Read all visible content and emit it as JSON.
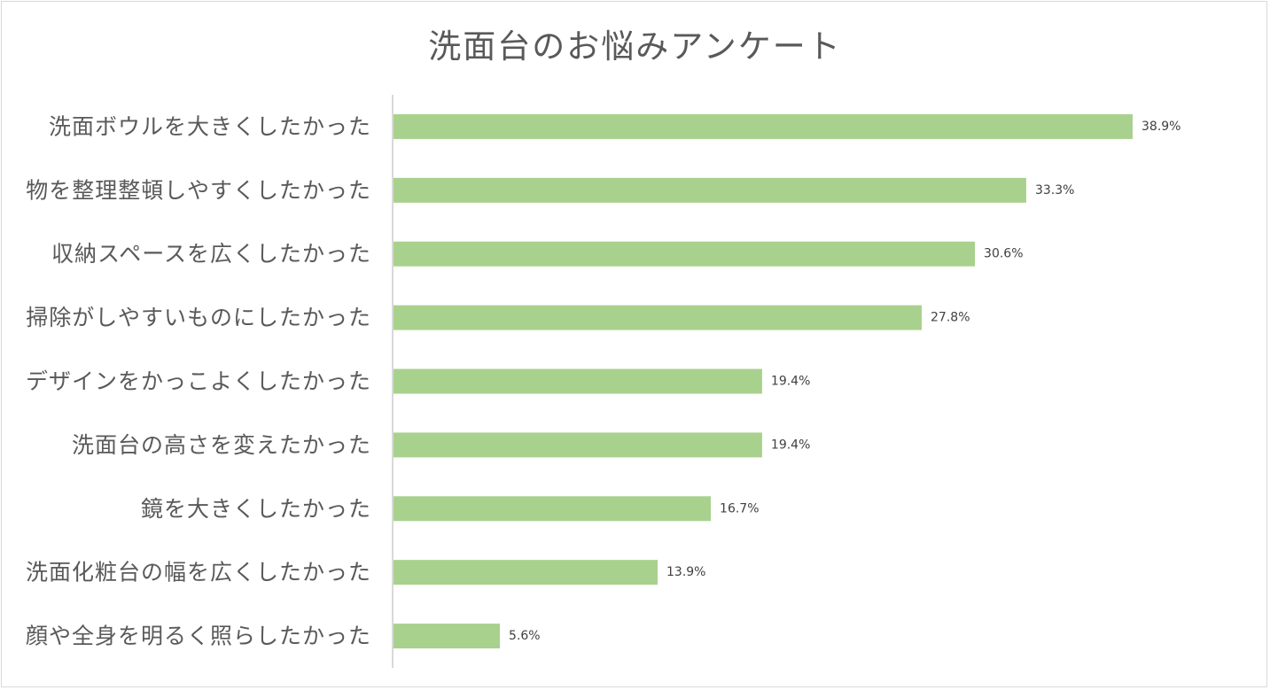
{
  "chart_data": {
    "type": "bar",
    "orientation": "horizontal",
    "title": "洗面台のお悩みアンケート",
    "xlabel": "",
    "ylabel": "",
    "xlim": [
      0,
      38.9
    ],
    "grid": false,
    "legend": "none",
    "bar_color": "#a9d18e",
    "categories": [
      "洗面ボウルを大きくしたかった",
      "物を整理整頓しやすくしたかった",
      "収納スペースを広くしたかった",
      "掃除がしやすいものにしたかった",
      "デザインをかっこよくしたかった",
      "洗面台の高さを変えたかった",
      "鏡を大きくしたかった",
      "洗面化粧台の幅を広くしたかった",
      "顔や全身を明るく照らしたかった"
    ],
    "values": [
      38.9,
      33.3,
      30.6,
      27.8,
      19.4,
      19.4,
      16.7,
      13.9,
      5.6
    ],
    "value_labels": [
      "38.9%",
      "33.3%",
      "30.6%",
      "27.8%",
      "19.4%",
      "19.4%",
      "16.7%",
      "13.9%",
      "5.6%"
    ]
  }
}
